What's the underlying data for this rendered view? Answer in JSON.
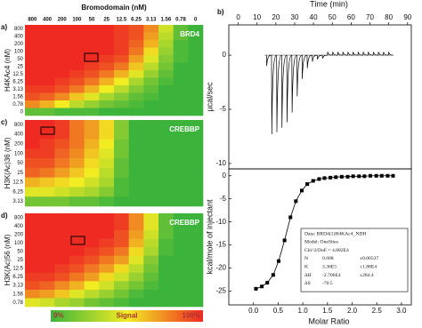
{
  "chart_data": [
    {
      "type": "heatmap",
      "panel_label": "a)",
      "title": "BRD4",
      "x_label": "Bromodomain (nM)",
      "y_label": "H4KAc4 (nM)",
      "x_categories": [
        "800",
        "400",
        "200",
        "100",
        "50",
        "25",
        "12.5",
        "6.25",
        "3.13",
        "1.56",
        "0.78",
        "0"
      ],
      "y_categories": [
        "800",
        "400",
        "200",
        "100",
        "50",
        "25",
        "12.5",
        "6.25",
        "3.13",
        "1.56",
        "0.78",
        "0"
      ],
      "values": [
        [
          100,
          100,
          100,
          100,
          100,
          100,
          95,
          90,
          75,
          40,
          10,
          0
        ],
        [
          100,
          100,
          100,
          100,
          100,
          100,
          95,
          90,
          70,
          35,
          10,
          0
        ],
        [
          100,
          100,
          100,
          100,
          100,
          100,
          95,
          85,
          65,
          30,
          5,
          0
        ],
        [
          100,
          100,
          100,
          100,
          100,
          100,
          95,
          80,
          55,
          25,
          5,
          0
        ],
        [
          100,
          100,
          100,
          100,
          100,
          95,
          90,
          70,
          45,
          20,
          5,
          0
        ],
        [
          100,
          100,
          100,
          100,
          95,
          90,
          80,
          60,
          35,
          15,
          0,
          0
        ],
        [
          100,
          100,
          100,
          95,
          90,
          80,
          65,
          45,
          25,
          10,
          0,
          0
        ],
        [
          100,
          100,
          95,
          90,
          80,
          65,
          50,
          30,
          15,
          5,
          0,
          0
        ],
        [
          95,
          95,
          90,
          80,
          65,
          50,
          35,
          20,
          10,
          0,
          0,
          0
        ],
        [
          90,
          85,
          75,
          60,
          45,
          30,
          20,
          10,
          5,
          0,
          0,
          0
        ],
        [
          75,
          65,
          50,
          35,
          25,
          15,
          10,
          5,
          0,
          0,
          0,
          0
        ],
        [
          10,
          10,
          5,
          5,
          5,
          0,
          0,
          0,
          0,
          0,
          0,
          0
        ]
      ]
    },
    {
      "type": "heatmap",
      "panel_label": "c)",
      "title": "CREBBP",
      "y_label": "H3K(Ac)36 (nM)",
      "y_categories": [
        "800",
        "400",
        "200",
        "100",
        "50",
        "25",
        "12.5",
        "6.25",
        "3.13"
      ],
      "values": [
        [
          100,
          100,
          95,
          80,
          70,
          55,
          20,
          0,
          0,
          0,
          0,
          0
        ],
        [
          100,
          100,
          95,
          80,
          70,
          55,
          20,
          0,
          0,
          0,
          0,
          0
        ],
        [
          100,
          95,
          90,
          80,
          65,
          50,
          15,
          0,
          0,
          0,
          0,
          0
        ],
        [
          95,
          95,
          85,
          75,
          60,
          45,
          15,
          0,
          0,
          0,
          0,
          0
        ],
        [
          90,
          90,
          80,
          70,
          55,
          40,
          10,
          0,
          0,
          0,
          0,
          0
        ],
        [
          85,
          80,
          70,
          60,
          50,
          35,
          10,
          0,
          0,
          0,
          0,
          0
        ],
        [
          65,
          60,
          55,
          50,
          40,
          30,
          5,
          0,
          0,
          0,
          0,
          0
        ],
        [
          45,
          45,
          40,
          35,
          30,
          20,
          5,
          0,
          0,
          0,
          0,
          0
        ],
        [
          15,
          15,
          15,
          10,
          10,
          5,
          0,
          0,
          0,
          0,
          0,
          0
        ]
      ]
    },
    {
      "type": "heatmap",
      "panel_label": "d)",
      "title": "CREBBP",
      "y_label": "H3K(Ac)56 (nM)",
      "y_categories": [
        "800",
        "400",
        "200",
        "100",
        "50",
        "25",
        "12.5",
        "6.25",
        "3.13",
        "1.56",
        "0.78"
      ],
      "values": [
        [
          100,
          100,
          100,
          100,
          100,
          100,
          95,
          75,
          45,
          10,
          0,
          0
        ],
        [
          100,
          100,
          100,
          100,
          100,
          100,
          95,
          75,
          45,
          10,
          0,
          0
        ],
        [
          100,
          100,
          100,
          100,
          100,
          100,
          90,
          70,
          40,
          10,
          0,
          0
        ],
        [
          100,
          100,
          100,
          100,
          100,
          95,
          90,
          65,
          35,
          5,
          0,
          0
        ],
        [
          100,
          100,
          100,
          100,
          95,
          90,
          80,
          55,
          30,
          5,
          0,
          0
        ],
        [
          100,
          100,
          100,
          95,
          90,
          80,
          70,
          45,
          20,
          0,
          0,
          0
        ],
        [
          100,
          100,
          95,
          90,
          80,
          70,
          55,
          35,
          15,
          0,
          0,
          0
        ],
        [
          95,
          95,
          90,
          80,
          70,
          55,
          40,
          25,
          10,
          0,
          0,
          0
        ],
        [
          90,
          85,
          75,
          65,
          50,
          40,
          25,
          15,
          5,
          0,
          0,
          0
        ],
        [
          75,
          70,
          60,
          45,
          35,
          25,
          15,
          5,
          0,
          0,
          0,
          0
        ],
        [
          45,
          40,
          30,
          25,
          15,
          10,
          5,
          0,
          0,
          0,
          0,
          0
        ]
      ]
    },
    {
      "type": "injection_peaks",
      "panel_label": "b)",
      "x_label": "Time (min)",
      "y_label": "µcal/sec",
      "color": "#000000",
      "x": [
        15,
        17.7,
        20.4,
        23.1,
        25.8,
        28.5,
        31.2,
        33.9,
        36.6,
        39.3,
        42,
        44.7,
        47.4,
        50.1,
        52.8,
        55.5,
        58.2,
        60.9,
        63.6,
        66.3,
        69,
        71.7,
        74.4,
        77.1,
        79.8
      ],
      "values": [
        -1.0,
        -7.3,
        -7.1,
        -6.7,
        -6.2,
        -5.3,
        -3.8,
        -2.2,
        -1.2,
        -0.6,
        -0.4,
        -0.3,
        0.3,
        0.3,
        0.3,
        0.3,
        0.3,
        0.3,
        0.3,
        0.3,
        0.3,
        0.3,
        0.3,
        0.3,
        0.3
      ],
      "xlim": [
        -5,
        92
      ],
      "ylim": [
        -10.5,
        2.8
      ],
      "xticks": [
        0,
        10,
        20,
        30,
        40,
        50,
        60,
        70,
        80,
        90
      ],
      "yticks": [
        0,
        -5,
        -10
      ]
    },
    {
      "type": "scatter",
      "x_label": "Molar Ratio",
      "y_label": "kcal/mole of injectant",
      "color": "#000000",
      "x": [
        0.05,
        0.17,
        0.28,
        0.4,
        0.51,
        0.63,
        0.75,
        0.86,
        0.98,
        1.09,
        1.21,
        1.33,
        1.44,
        1.56,
        1.67,
        1.79,
        1.91,
        2.02,
        2.14,
        2.25,
        2.37,
        2.49,
        2.6,
        2.72,
        2.83
      ],
      "values": [
        -24.5,
        -24.0,
        -23.2,
        -21.5,
        -18.5,
        -14,
        -9,
        -5.5,
        -3.2,
        -1.8,
        -1.1,
        -0.7,
        -0.5,
        -0.4,
        -0.3,
        -0.2,
        -0.2,
        -0.1,
        -0.1,
        -0.1,
        0,
        0,
        0,
        0,
        0
      ],
      "xlim": [
        -0.5,
        3.2
      ],
      "ylim": [
        -28,
        1.5
      ],
      "xticks": [
        {
          "value": 0,
          "label": "0.0"
        },
        0.5,
        {
          "value": 1,
          "label": "1.0"
        },
        1.5,
        {
          "value": 2,
          "label": "2.0"
        },
        2.5,
        {
          "value": 3,
          "label": "3.0"
        }
      ],
      "yticks": [
        0,
        -5,
        -10,
        -15,
        -20,
        -25
      ],
      "fit_info": [
        "Data: BRD4(1)H4KAc4_NDH",
        "Model: OneSites",
        "Chi^2/DoF = 4.882E4",
        [
          "N",
          "0.608",
          "±0.00537"
        ],
        [
          "K",
          "3.36E5",
          "±1.88E4"
        ],
        [
          "ΔH",
          "-2.706E4",
          "±284.4"
        ],
        [
          "ΔS",
          "-70.5"
        ]
      ]
    }
  ],
  "colorbar": {
    "title": "Signal",
    "lim": [
      0,
      100
    ],
    "colors": [
      "#3cb43c",
      "#f2ec22",
      "#ee2a22"
    ],
    "ticks": [
      {
        "value": 0,
        "label": "0%"
      },
      {
        "value": 100,
        "label": "100%"
      }
    ]
  }
}
